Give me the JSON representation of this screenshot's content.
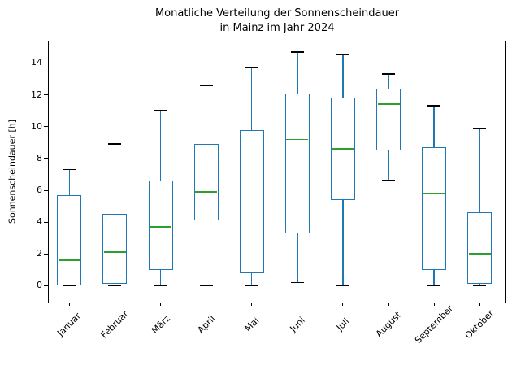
{
  "title": {
    "line1": "Monatliche Verteilung der Sonnenscheindauer",
    "line2": "in Mainz im Jahr 2024"
  },
  "chart_data": {
    "type": "boxplot",
    "title": "Monatliche Verteilung der Sonnenscheindauer\nin Mainz im Jahr 2024",
    "xlabel": "",
    "ylabel": "Sonnenscheindauer [h]",
    "categories": [
      "Januar",
      "Februar",
      "März",
      "April",
      "Mai",
      "Juni",
      "Juli",
      "August",
      "September",
      "Oktober"
    ],
    "boxes": [
      {
        "label": "Januar",
        "min": 0,
        "q1": 0,
        "median": 1.6,
        "q3": 5.7,
        "max": 7.3
      },
      {
        "label": "Februar",
        "min": 0,
        "q1": 0.1,
        "median": 2.1,
        "q3": 4.5,
        "max": 8.9
      },
      {
        "label": "März",
        "min": 0,
        "q1": 1.0,
        "median": 3.7,
        "q3": 6.6,
        "max": 11.0
      },
      {
        "label": "April",
        "min": 0,
        "q1": 4.1,
        "median": 5.9,
        "q3": 8.9,
        "max": 12.6
      },
      {
        "label": "Mai",
        "min": 0,
        "q1": 0.8,
        "median": 4.7,
        "q3": 9.8,
        "max": 13.7
      },
      {
        "label": "Juni",
        "min": 0.2,
        "q1": 3.3,
        "median": 9.2,
        "q3": 12.1,
        "max": 14.7
      },
      {
        "label": "Juli",
        "min": 0,
        "q1": 5.4,
        "median": 8.6,
        "q3": 11.8,
        "max": 14.5
      },
      {
        "label": "August",
        "min": 6.6,
        "q1": 8.5,
        "median": 11.4,
        "q3": 12.4,
        "max": 13.3
      },
      {
        "label": "September",
        "min": 0,
        "q1": 1.0,
        "median": 5.8,
        "q3": 8.7,
        "max": 11.3
      },
      {
        "label": "Oktober",
        "min": 0,
        "q1": 0.1,
        "median": 2.0,
        "q3": 4.6,
        "max": 9.9
      }
    ],
    "yticks": [
      0,
      2,
      4,
      6,
      8,
      10,
      12,
      14
    ],
    "ytick_labels": [
      "0",
      "2",
      "4",
      "6",
      "8",
      "10",
      "12",
      "14"
    ],
    "ylim": [
      -1.05,
      15.35
    ],
    "grid": false,
    "legend": "none",
    "colors": {
      "box": "#1f77b4",
      "whisker": "#1f77b4",
      "median": "#2ca02c",
      "cap": "#000000",
      "spine": "#000000"
    }
  }
}
